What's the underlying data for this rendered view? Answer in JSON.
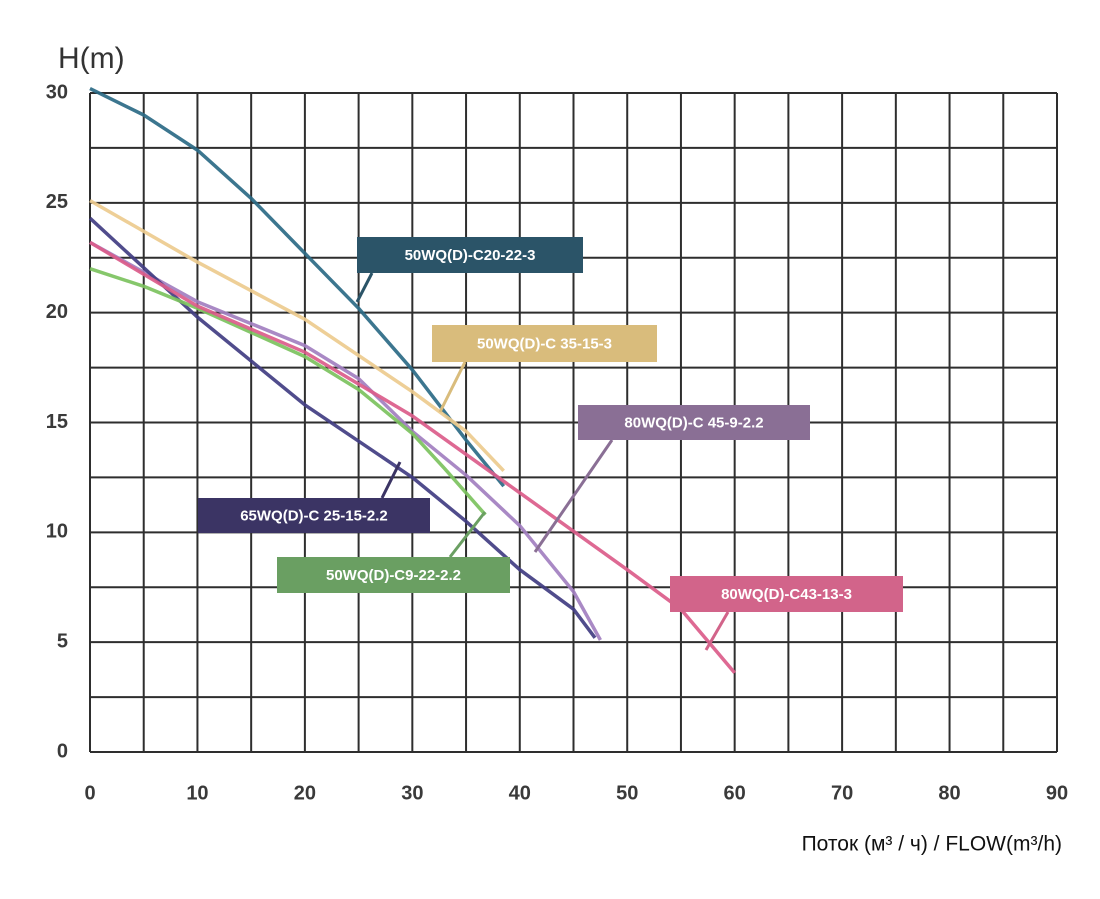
{
  "chart_data": {
    "type": "line",
    "y_label": "H(m)",
    "x_label": "Поток (м³ / ч) / FLOW(m³/h)",
    "xlim": [
      0,
      90
    ],
    "ylim": [
      0,
      30
    ],
    "xticks": [
      0,
      10,
      20,
      30,
      40,
      50,
      60,
      70,
      80,
      90
    ],
    "yticks": [
      0,
      5,
      10,
      15,
      20,
      25,
      30
    ],
    "x_grid": [
      0,
      5,
      10,
      15,
      20,
      25,
      30,
      35,
      40,
      45,
      50,
      55,
      60,
      65,
      70,
      75,
      80,
      85,
      90
    ],
    "y_grid": [
      0,
      2.5,
      5,
      7.5,
      10,
      12.5,
      15,
      17.5,
      20,
      22.5,
      25,
      27.5,
      30
    ],
    "grid": true,
    "series": [
      {
        "name": "50WQ(D)-C20-22-3",
        "color": "#2b6a85",
        "box_color": "#2b5468",
        "x": [
          0,
          5,
          10,
          15,
          20,
          25,
          30,
          35,
          38.5
        ],
        "values": [
          30.2,
          29,
          27.4,
          25.2,
          22.7,
          20.2,
          17.4,
          14.2,
          12.1
        ]
      },
      {
        "name": "50WQ(D)-C 35-15-3",
        "color": "#edcb8e",
        "box_color": "#d9bc7c",
        "x": [
          0,
          10,
          20,
          30,
          35,
          38.5
        ],
        "values": [
          25.1,
          22.3,
          19.7,
          16.4,
          14.6,
          12.8
        ]
      },
      {
        "name": "80WQ(D)-C 45-9-2.2",
        "color": "#a27fc0",
        "box_color": "#8a6f95",
        "x": [
          0,
          10,
          20,
          25,
          30,
          35,
          40,
          45,
          47.5
        ],
        "values": [
          23.2,
          20.5,
          18.5,
          17,
          14.6,
          12.6,
          10.3,
          7.3,
          5.1
        ]
      },
      {
        "name": "65WQ(D)-C 25-15-2.2",
        "color": "#413d82",
        "box_color": "#3b3464",
        "x": [
          0,
          10,
          20,
          30,
          35,
          40,
          45,
          47
        ],
        "values": [
          24.3,
          19.8,
          15.8,
          12.5,
          10.5,
          8.3,
          6.5,
          5.2
        ]
      },
      {
        "name": "50WQ(D)-C9-22-2.2",
        "color": "#7cc25e",
        "box_color": "#6a9f62",
        "x": [
          0,
          5,
          10,
          20,
          25,
          30,
          33,
          36.8
        ],
        "values": [
          22,
          21.2,
          20.2,
          18,
          16.5,
          14.5,
          12.9,
          10.8
        ]
      },
      {
        "name": "80WQ(D)-C43-13-3",
        "color": "#db5c8a",
        "box_color": "#d2648a",
        "x": [
          0,
          10,
          20,
          30,
          40,
          50,
          55,
          60
        ],
        "values": [
          23.2,
          20.3,
          18.2,
          15.3,
          11.8,
          8.3,
          6.5,
          3.6
        ]
      }
    ]
  }
}
